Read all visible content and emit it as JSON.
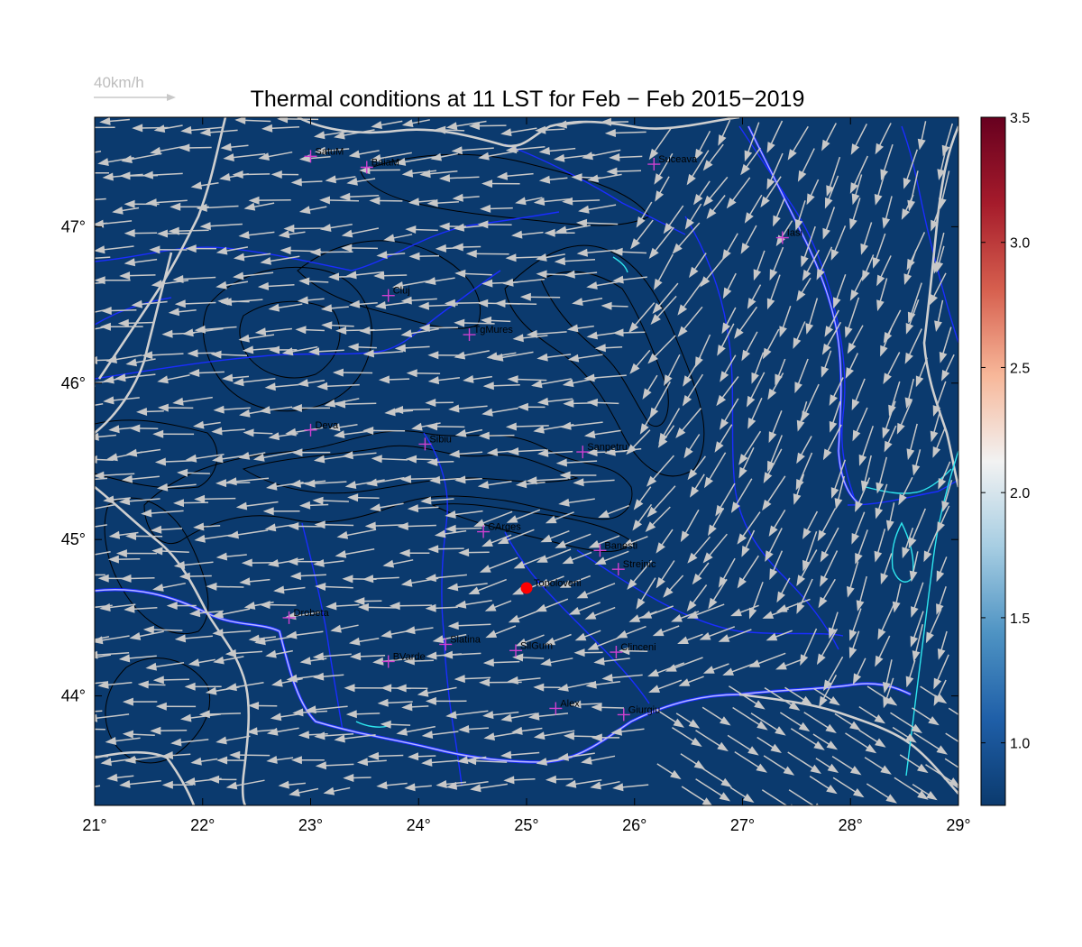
{
  "title": "Thermal conditions at 11 LST for Feb − Feb  2015−2019",
  "wind_scale": {
    "label": "40km/h",
    "color": "#c8c8c8"
  },
  "map": {
    "lon_range": [
      21,
      29
    ],
    "lat_range": [
      43.3,
      47.7
    ],
    "background_color": "#0b3a6e",
    "x_ticks": [
      "21°",
      "22°",
      "23°",
      "24°",
      "25°",
      "26°",
      "27°",
      "28°",
      "29°"
    ],
    "y_ticks": [
      "44°",
      "45°",
      "46°",
      "47°"
    ],
    "colors": {
      "border": "#cfcfcf",
      "river": "#1a2dff",
      "lake": "#2ee6ee",
      "danube": "#b8b8ff",
      "contour": "#000000",
      "station_marker": "#d040d0",
      "highlight_marker": "#ff0000",
      "wind_arrow": "#c8c8c8"
    }
  },
  "stations": [
    {
      "name": "SatuM",
      "lon": 23.0,
      "lat": 47.45
    },
    {
      "name": "BaiaM",
      "lon": 23.52,
      "lat": 47.38
    },
    {
      "name": "Suceava",
      "lon": 26.18,
      "lat": 47.4
    },
    {
      "name": "Iasi",
      "lon": 27.37,
      "lat": 46.93
    },
    {
      "name": "Cluj",
      "lon": 23.72,
      "lat": 46.56
    },
    {
      "name": "TgMures",
      "lon": 24.47,
      "lat": 46.31
    },
    {
      "name": "Deva",
      "lon": 23.0,
      "lat": 45.7
    },
    {
      "name": "Sibiu",
      "lon": 24.06,
      "lat": 45.61
    },
    {
      "name": "Sanpetru",
      "lon": 25.52,
      "lat": 45.56
    },
    {
      "name": "CArges",
      "lon": 24.6,
      "lat": 45.05
    },
    {
      "name": "Banesti",
      "lon": 25.68,
      "lat": 44.93
    },
    {
      "name": "Strejnic",
      "lon": 25.85,
      "lat": 44.81
    },
    {
      "name": "Drobeta",
      "lon": 22.8,
      "lat": 44.5
    },
    {
      "name": "Slatina",
      "lon": 24.25,
      "lat": 44.33
    },
    {
      "name": "SilGum",
      "lon": 24.9,
      "lat": 44.29
    },
    {
      "name": "Clinceni",
      "lon": 25.83,
      "lat": 44.28
    },
    {
      "name": "BVarde",
      "lon": 23.72,
      "lat": 44.22
    },
    {
      "name": "Alex",
      "lon": 25.27,
      "lat": 43.92
    },
    {
      "name": "Giurgiu",
      "lon": 25.9,
      "lat": 43.88
    }
  ],
  "highlight_station": {
    "name": "Topoloveni",
    "lon": 25.0,
    "lat": 44.69
  },
  "colorbar": {
    "range": [
      0.75,
      3.5
    ],
    "ticks": [
      "1.0",
      "1.5",
      "2.0",
      "2.5",
      "3.0",
      "3.5"
    ],
    "tick_values": [
      1.0,
      1.5,
      2.0,
      2.5,
      3.0,
      3.5
    ],
    "colors": [
      "#0b3a6e",
      "#1f5fa8",
      "#4e93c3",
      "#a6cde2",
      "#f2f2f2",
      "#f7b799",
      "#d65f4e",
      "#a51b2b",
      "#67001f"
    ]
  }
}
